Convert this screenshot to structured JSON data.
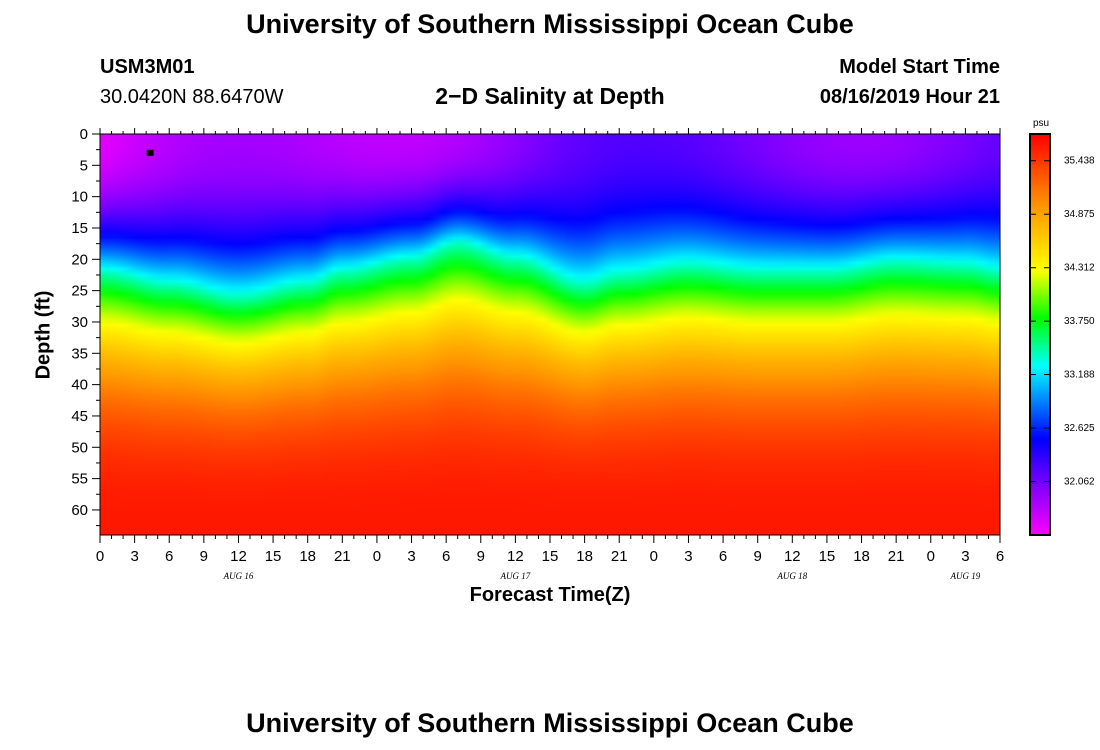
{
  "header": {
    "title": "University of Southern Mississippi Ocean Cube",
    "station_id": "USM3M01",
    "station_coords": "30.0420N 88.6470W",
    "plot_title": "2−D Salinity at Depth",
    "start_label": "Model Start Time",
    "start_value": "08/16/2019 Hour 21"
  },
  "footer": {
    "title": "University of Southern Mississippi Ocean Cube"
  },
  "chart_data": {
    "type": "heatmap",
    "title": "2−D Salinity at Depth",
    "xlabel": "Forecast Time(Z)",
    "ylabel": "Depth (ft)",
    "x_range_hours": [
      0,
      78
    ],
    "y_range_ft": [
      0,
      64
    ],
    "y_ticks": [
      0,
      5,
      10,
      15,
      20,
      25,
      30,
      35,
      40,
      45,
      50,
      55,
      60
    ],
    "x_tick_labels": [
      "0",
      "3",
      "6",
      "9",
      "12",
      "15",
      "18",
      "21",
      "0",
      "3",
      "6",
      "9",
      "12",
      "15",
      "18",
      "21",
      "0",
      "3",
      "6",
      "9",
      "12",
      "15",
      "18",
      "21",
      "0",
      "3",
      "6"
    ],
    "day_labels": [
      {
        "label": "AUG 16",
        "hour": 12
      },
      {
        "label": "AUG 17",
        "hour": 36
      },
      {
        "label": "AUG 18",
        "hour": 60
      },
      {
        "label": "AUG 19",
        "hour": 75
      }
    ],
    "colorbar": {
      "unit": "psu",
      "min": 31.5,
      "max": 35.719,
      "ticks": [
        "35.438",
        "34.875",
        "34.312",
        "33.750",
        "33.188",
        "32.625",
        "32.062"
      ],
      "tick_values": [
        35.438,
        34.875,
        34.312,
        33.75,
        33.188,
        32.625,
        32.062
      ]
    },
    "halocline_depth_ft": [
      {
        "hour": 0,
        "depth": 22
      },
      {
        "hour": 6,
        "depth": 24
      },
      {
        "hour": 12,
        "depth": 26
      },
      {
        "hour": 18,
        "depth": 24
      },
      {
        "hour": 21,
        "depth": 22
      },
      {
        "hour": 27,
        "depth": 20
      },
      {
        "hour": 31,
        "depth": 17.5
      },
      {
        "hour": 36,
        "depth": 20
      },
      {
        "hour": 42,
        "depth": 24
      },
      {
        "hour": 45,
        "depth": 22.5
      },
      {
        "hour": 51,
        "depth": 21
      },
      {
        "hour": 57,
        "depth": 22
      },
      {
        "hour": 63,
        "depth": 22
      },
      {
        "hour": 69,
        "depth": 20.5
      },
      {
        "hour": 75,
        "depth": 21
      },
      {
        "hour": 78,
        "depth": 22
      }
    ],
    "surface_salinity_psu": 31.6,
    "bottom_salinity_psu": 35.6,
    "station_marker": {
      "hour": 4.3,
      "depth": 3
    }
  }
}
